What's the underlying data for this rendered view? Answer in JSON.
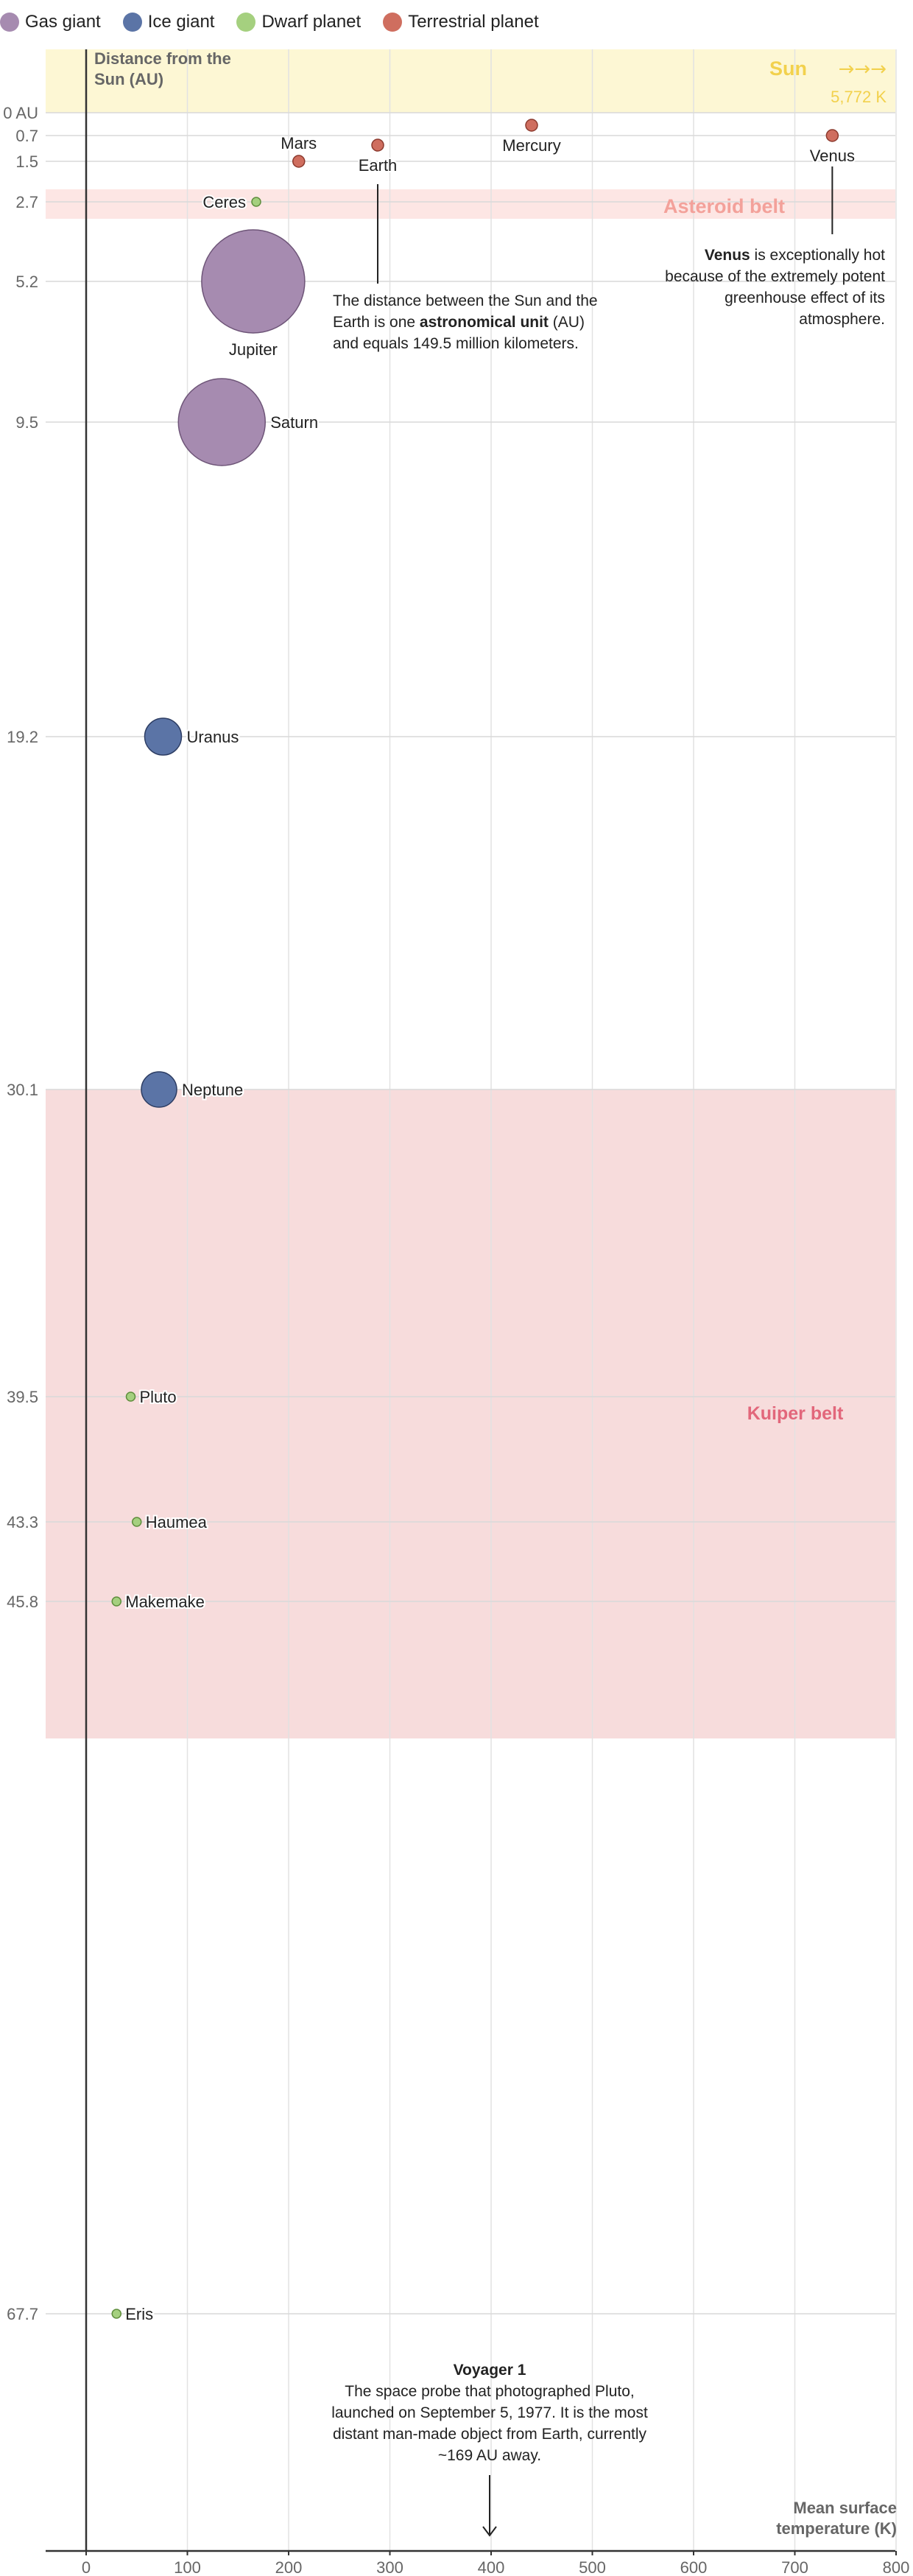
{
  "legend": [
    {
      "label": "Gas giant",
      "color": "#a68bb0"
    },
    {
      "label": "Ice giant",
      "color": "#5b74a6"
    },
    {
      "label": "Dwarf planet",
      "color": "#a5d07f"
    },
    {
      "label": "Terrestrial planet",
      "color": "#cf6e5f"
    }
  ],
  "chart_data": {
    "type": "scatter",
    "title": "",
    "xlabel": "Mean surface temperature (K)",
    "ylabel": "Distance from the Sun (AU)",
    "xlim": [
      -40,
      800
    ],
    "x_ticks": [
      0,
      100,
      200,
      300,
      400,
      500,
      600,
      700,
      800
    ],
    "y_tick_labels": [
      "0 AU",
      "0.7",
      "1.5",
      "2.7",
      "5.2",
      "9.5",
      "19.2",
      "30.1",
      "39.5",
      "43.3",
      "45.8",
      "67.7"
    ],
    "y_ticks": [
      0,
      0.7,
      1.5,
      2.7,
      5.2,
      9.5,
      19.2,
      30.1,
      39.5,
      43.3,
      45.8,
      67.7
    ],
    "x_axis_label_lines": [
      "Mean surface",
      "temperature (K)"
    ],
    "y_axis_label_lines": [
      "Distance from the",
      "Sun (AU)"
    ],
    "grid": true,
    "points": [
      {
        "name": "Mercury",
        "x": 440,
        "y": 0.4,
        "type": "Terrestrial planet"
      },
      {
        "name": "Venus",
        "x": 737,
        "y": 0.7,
        "type": "Terrestrial planet"
      },
      {
        "name": "Earth",
        "x": 288,
        "y": 1.0,
        "type": "Terrestrial planet"
      },
      {
        "name": "Mars",
        "x": 210,
        "y": 1.5,
        "type": "Terrestrial planet"
      },
      {
        "name": "Ceres",
        "x": 168,
        "y": 2.7,
        "type": "Dwarf planet"
      },
      {
        "name": "Jupiter",
        "x": 165,
        "y": 5.2,
        "type": "Gas giant"
      },
      {
        "name": "Saturn",
        "x": 134,
        "y": 9.5,
        "type": "Gas giant"
      },
      {
        "name": "Uranus",
        "x": 76,
        "y": 19.2,
        "type": "Ice giant"
      },
      {
        "name": "Neptune",
        "x": 72,
        "y": 30.1,
        "type": "Ice giant"
      },
      {
        "name": "Pluto",
        "x": 44,
        "y": 39.5,
        "type": "Dwarf planet"
      },
      {
        "name": "Haumea",
        "x": 50,
        "y": 43.3,
        "type": "Dwarf planet"
      },
      {
        "name": "Makemake",
        "x": 30,
        "y": 45.8,
        "type": "Dwarf planet"
      },
      {
        "name": "Eris",
        "x": 30,
        "y": 67.7,
        "type": "Dwarf planet"
      }
    ],
    "bands": [
      {
        "label": "Sun →→→",
        "sublabel": "5,772 K",
        "color": "#fdf7d4",
        "text_color": "#f2d14d"
      },
      {
        "label": "Asteroid belt",
        "color": "#fde6e4",
        "text_color": "#f3a19a"
      },
      {
        "label": "Kuiper belt",
        "color": "#f7dcdc",
        "text_color": "#e2677b"
      }
    ]
  },
  "annotations": {
    "au_pre": "The distance between the Sun and the Earth is one ",
    "au_bold": "astronomical unit",
    "au_post": " (AU) and equals 149.5 million kilometers.",
    "venus_bold": "Venus",
    "venus_text": " is exceptionally hot because of the extremely potent greenhouse effect of its atmosphere.",
    "voyager_title": "Voyager 1",
    "voyager_text": "The space probe that photographed Pluto, launched on September 5, 1977. It is the most distant man-made object from Earth, currently ~169 AU away."
  }
}
